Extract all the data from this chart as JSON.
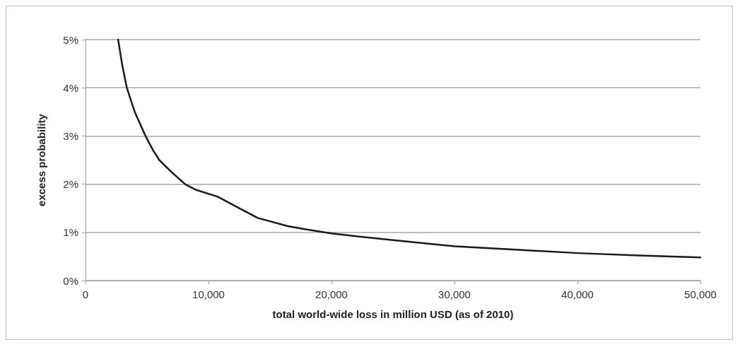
{
  "chart_data": {
    "type": "line",
    "xlabel": "total world-wide loss in million USD (as of 2010)",
    "ylabel": "excess probability",
    "series": [
      {
        "color": "#1a1a1a",
        "x": [
          2650,
          3000,
          3360,
          4000,
          4880,
          5500,
          6000,
          7000,
          8100,
          9000,
          10760,
          12660,
          14000,
          16450,
          18000,
          20000,
          22000,
          25000,
          30000,
          35000,
          40000,
          45000,
          50000
        ],
        "values": [
          5,
          4.45,
          4,
          3.5,
          3,
          2.7,
          2.5,
          2.25,
          2,
          1.88,
          1.74,
          1.48,
          1.3,
          1.13,
          1.06,
          0.98,
          0.92,
          0.84,
          0.71,
          0.64,
          0.57,
          0.52,
          0.48
        ]
      }
    ],
    "xlim": [
      0,
      50000
    ],
    "xticks": [
      0,
      {
        "value": 10000,
        "label": "10,000"
      },
      {
        "value": 20000,
        "label": "20,000"
      },
      {
        "value": 30000,
        "label": "30,000"
      },
      {
        "value": 40000,
        "label": "40,000"
      },
      {
        "value": 50000,
        "label": "50,000"
      }
    ],
    "ylim": [
      0,
      5
    ],
    "yticks": [
      {
        "value": 0,
        "label": "0%"
      },
      {
        "value": 1,
        "label": "1%"
      },
      {
        "value": 2,
        "label": "2%"
      },
      {
        "value": 3,
        "label": "3%"
      },
      {
        "value": 4,
        "label": "4%"
      },
      {
        "value": 5,
        "label": "5%"
      }
    ],
    "grid": "y",
    "marker": "none",
    "line_style": "solid"
  }
}
